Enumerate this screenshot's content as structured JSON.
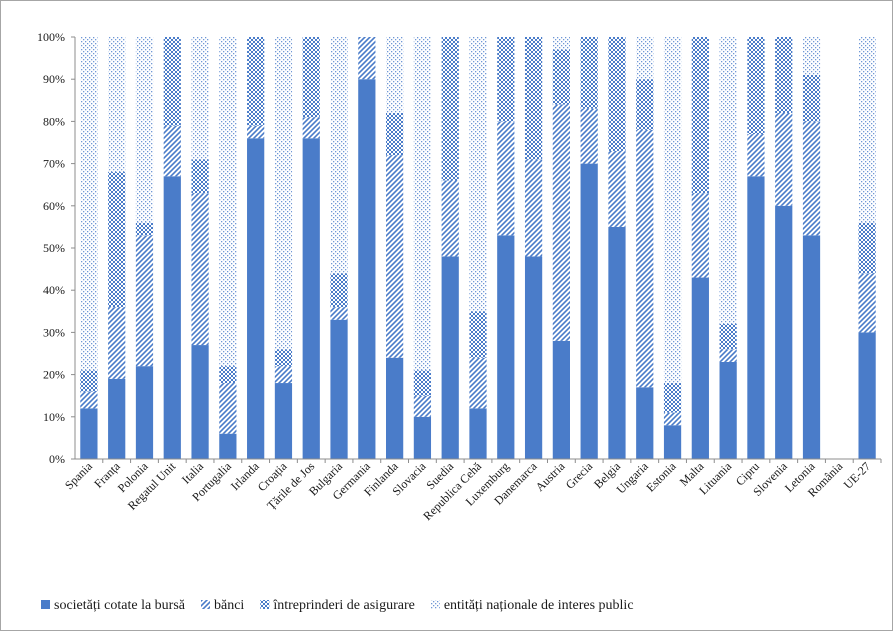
{
  "chart_data": {
    "type": "bar",
    "stacked": true,
    "percent_stacked": true,
    "title": "",
    "xlabel": "",
    "ylabel": "",
    "ylim": [
      0,
      100
    ],
    "y_ticks": [
      "0%",
      "10%",
      "20%",
      "30%",
      "40%",
      "50%",
      "60%",
      "70%",
      "80%",
      "90%",
      "100%"
    ],
    "grid": false,
    "legend_position": "bottom",
    "categories": [
      "Spania",
      "Franța",
      "Polonia",
      "Regatul Unit",
      "Italia",
      "Portugalia",
      "Irlanda",
      "Croația",
      "Țările de Jos",
      "Bulgaria",
      "Germania",
      "Finlanda",
      "Slovacia",
      "Suedia",
      "Republica Cehă",
      "Luxemburg",
      "Danemarca",
      "Austria",
      "Grecia",
      "Belgia",
      "Ungaria",
      "Estonia",
      "Malta",
      "Lituania",
      "Cipru",
      "Slovenia",
      "Letonia",
      "România",
      "UE-27"
    ],
    "series": [
      {
        "name": "societăți cotate la bursă",
        "color": "#4a7cc9",
        "pattern": "solid",
        "values": [
          12,
          19,
          22,
          67,
          27,
          6,
          76,
          18,
          76,
          33,
          90,
          24,
          10,
          48,
          12,
          53,
          48,
          28,
          70,
          55,
          17,
          8,
          43,
          23,
          67,
          60,
          53,
          0,
          30
        ]
      },
      {
        "name": "bănci",
        "color": "#4a7cc9",
        "pattern": "diagonal",
        "values": [
          4,
          17,
          31,
          12,
          36,
          12,
          3,
          4,
          5,
          3,
          10,
          48,
          5,
          18,
          12,
          27,
          23,
          56,
          13,
          18,
          61,
          3,
          20,
          3,
          10,
          22,
          27,
          0,
          14
        ]
      },
      {
        "name": "întreprinderi de asigurare",
        "color": "#4a7cc9",
        "pattern": "checker",
        "values": [
          5,
          32,
          3,
          21,
          8,
          4,
          21,
          4,
          19,
          8,
          0,
          10,
          6,
          34,
          11,
          20,
          29,
          13,
          17,
          27,
          12,
          7,
          37,
          6,
          23,
          18,
          11,
          0,
          12
        ]
      },
      {
        "name": "entități naționale de interes public",
        "color": "#4a7cc9",
        "pattern": "dots",
        "values": [
          79,
          32,
          44,
          0,
          29,
          78,
          0,
          74,
          0,
          56,
          0,
          18,
          79,
          0,
          65,
          0,
          0,
          3,
          0,
          0,
          10,
          82,
          0,
          68,
          0,
          0,
          9,
          0,
          44
        ]
      }
    ]
  }
}
